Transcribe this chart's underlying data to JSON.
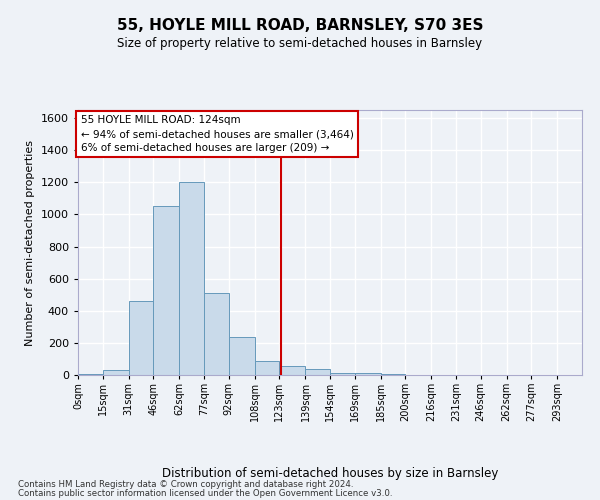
{
  "title": "55, HOYLE MILL ROAD, BARNSLEY, S70 3ES",
  "subtitle": "Size of property relative to semi-detached houses in Barnsley",
  "xlabel": "Distribution of semi-detached houses by size in Barnsley",
  "ylabel": "Number of semi-detached properties",
  "footnote1": "Contains HM Land Registry data © Crown copyright and database right 2024.",
  "footnote2": "Contains public sector information licensed under the Open Government Licence v3.0.",
  "annotation_line1": "55 HOYLE MILL ROAD: 124sqm",
  "annotation_line2": "← 94% of semi-detached houses are smaller (3,464)",
  "annotation_line3": "6% of semi-detached houses are larger (209) →",
  "bar_color": "#c9daea",
  "bar_edge_color": "#6699bb",
  "marker_line_color": "#cc0000",
  "marker_value": 124,
  "bin_edges": [
    0,
    15,
    31,
    46,
    62,
    77,
    92,
    108,
    123,
    139,
    154,
    169,
    185,
    200,
    216,
    231,
    246,
    262,
    277,
    293,
    308
  ],
  "bar_heights": [
    5,
    30,
    460,
    1050,
    1200,
    510,
    235,
    85,
    55,
    35,
    15,
    10,
    5,
    3,
    2,
    1,
    0,
    0,
    1,
    0
  ],
  "ylim": [
    0,
    1650
  ],
  "yticks": [
    0,
    200,
    400,
    600,
    800,
    1000,
    1200,
    1400,
    1600
  ],
  "background_color": "#eef2f7",
  "axes_background": "#eef2f7",
  "grid_color": "#ffffff"
}
